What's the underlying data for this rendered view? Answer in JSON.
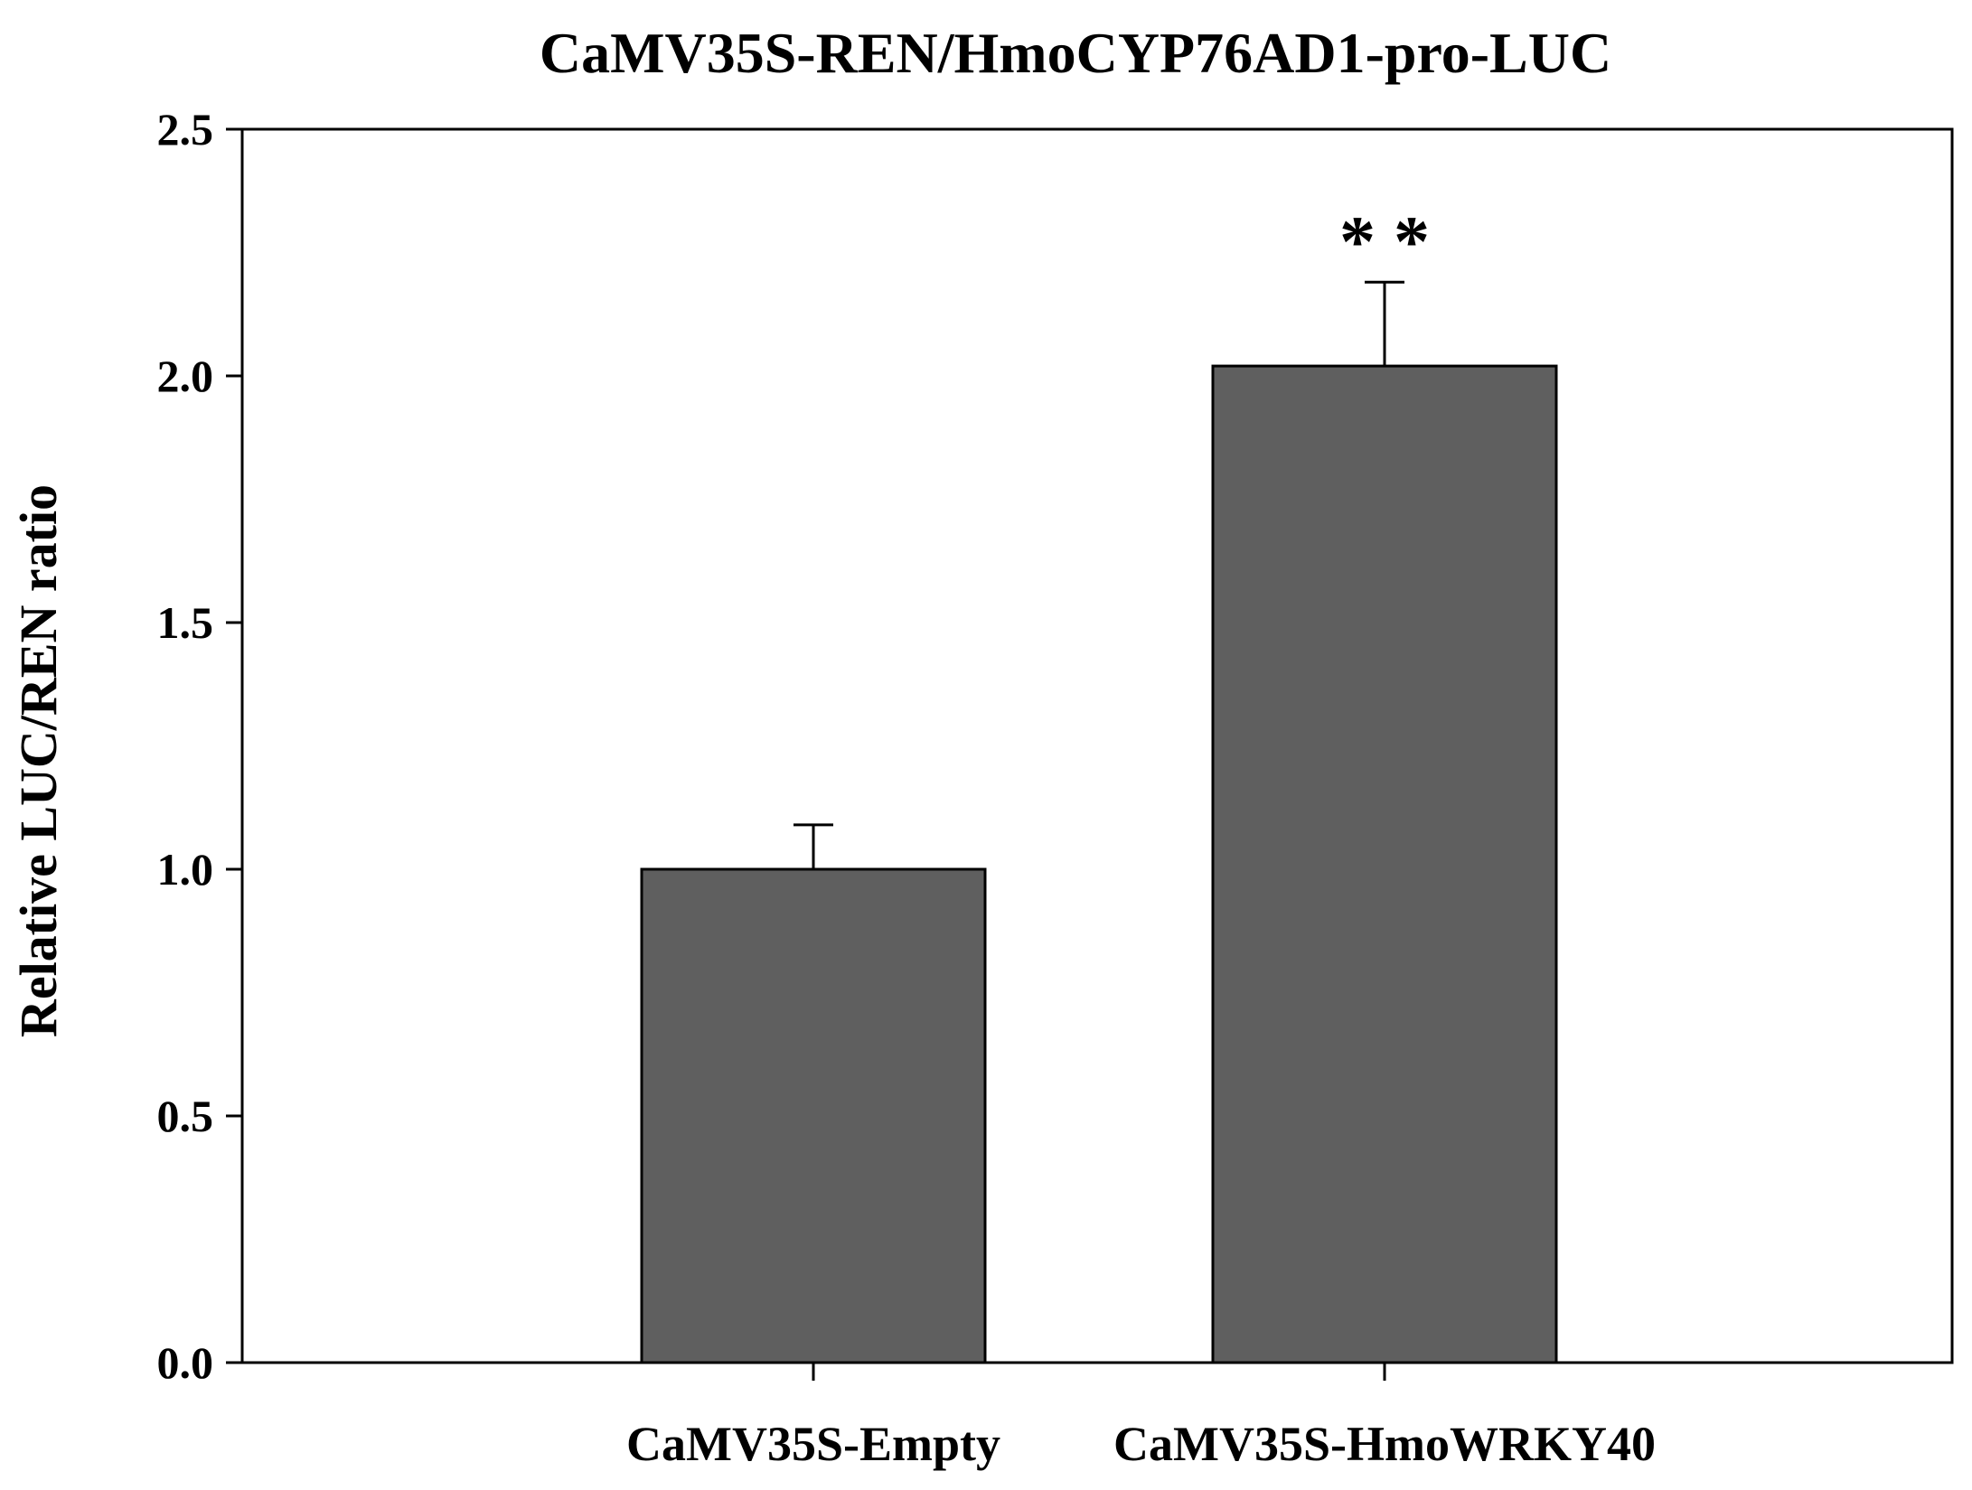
{
  "chart_data": {
    "type": "bar",
    "title": "CaMV35S-REN/HmoCYP76AD1-pro-LUC",
    "xlabel": "",
    "ylabel": "Relative LUC/REN ratio",
    "categories": [
      "CaMV35S-Empty",
      "CaMV35S-HmoWRKY40"
    ],
    "values": [
      1.0,
      2.02
    ],
    "errors": [
      0.09,
      0.17
    ],
    "annotations": [
      "",
      "* *"
    ],
    "ylim": [
      0,
      2.5
    ],
    "yticks": [
      "0.0",
      "0.5",
      "1.0",
      "1.5",
      "2.0",
      "2.5"
    ],
    "grid": false,
    "bar_color": "#5f5f5f",
    "edge_color": "#000000"
  }
}
